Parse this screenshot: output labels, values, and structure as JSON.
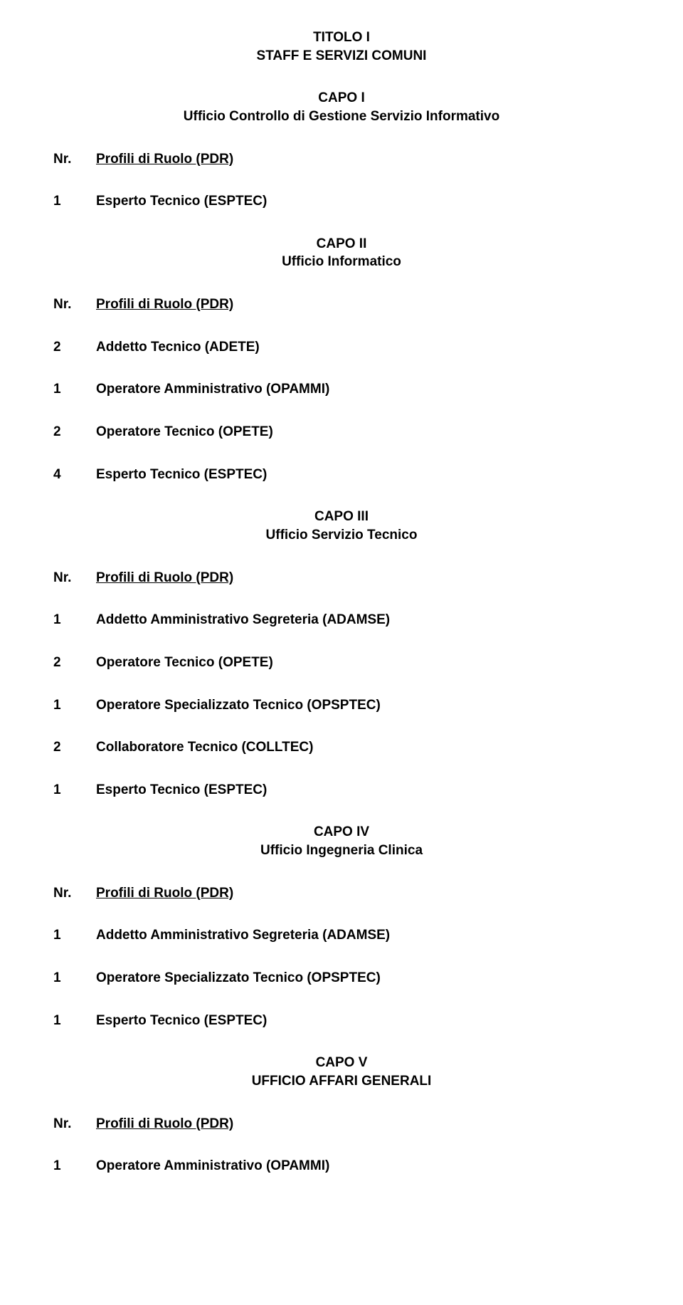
{
  "page": {
    "background_color": "#ffffff",
    "text_color": "#000000",
    "font_family": "Verdana, Geneva, sans-serif",
    "base_font_size_pt": 14
  },
  "title": {
    "line1": "TITOLO I",
    "line2": "STAFF E SERVIZI COMUNI"
  },
  "capo1": {
    "line1": "CAPO I",
    "line2": "Ufficio Controllo di Gestione Servizio Informativo",
    "nr_label": "Nr.",
    "pdr_label": "Profili di Ruolo (PDR)",
    "rows": [
      {
        "nr": "1",
        "label": "Esperto Tecnico (ESPTEC)"
      }
    ]
  },
  "capo2": {
    "line1": "CAPO II",
    "line2": "Ufficio Informatico",
    "nr_label": "Nr.",
    "pdr_label": "Profili di Ruolo (PDR)",
    "rows": [
      {
        "nr": "2",
        "label": "Addetto Tecnico (ADETE)"
      },
      {
        "nr": "1",
        "label": "Operatore Amministrativo (OPAMMI)"
      },
      {
        "nr": "2",
        "label": "Operatore Tecnico (OPETE)"
      },
      {
        "nr": "4",
        "label": "Esperto Tecnico (ESPTEC)"
      }
    ]
  },
  "capo3": {
    "line1": "CAPO III",
    "line2": "Ufficio Servizio Tecnico",
    "nr_label": "Nr.",
    "pdr_label": "Profili di Ruolo (PDR)",
    "rows": [
      {
        "nr": "1",
        "label": "Addetto Amministrativo Segreteria (ADAMSE)"
      },
      {
        "nr": "2",
        "label": "Operatore Tecnico (OPETE)"
      },
      {
        "nr": "1",
        "label": "Operatore Specializzato Tecnico (OPSPTEC)"
      },
      {
        "nr": "2",
        "label": "Collaboratore Tecnico (COLLTEC)"
      },
      {
        "nr": "1",
        "label": "Esperto Tecnico (ESPTEC)"
      }
    ]
  },
  "capo4": {
    "line1": "CAPO IV",
    "line2": "Ufficio Ingegneria Clinica",
    "nr_label": "Nr.",
    "pdr_label": "Profili di Ruolo (PDR)",
    "rows": [
      {
        "nr": "1",
        "label": "Addetto Amministrativo Segreteria (ADAMSE)"
      },
      {
        "nr": "1",
        "label": "Operatore Specializzato Tecnico (OPSPTEC)"
      },
      {
        "nr": "1",
        "label": "Esperto Tecnico (ESPTEC)"
      }
    ]
  },
  "capo5": {
    "line1": "CAPO V",
    "line2": "UFFICIO AFFARI GENERALI",
    "nr_label": "Nr.",
    "pdr_label": "Profili di Ruolo (PDR)",
    "rows": [
      {
        "nr": "1",
        "label": "Operatore Amministrativo (OPAMMI)"
      }
    ]
  }
}
